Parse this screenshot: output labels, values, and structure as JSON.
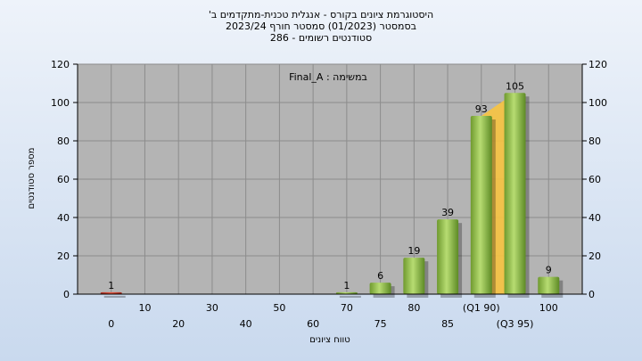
{
  "chart_data": {
    "type": "bar",
    "title_lines": [
      "היסטוגרמת ציונים בקורס - אנגלית טכנית-מתקדמים ב'",
      "בסמסטר (01/2023) סמסטר חורף 2023/24",
      "סטודנטים רשומים - 286"
    ],
    "annotation": "במשימה : Final_A",
    "xlabel": "טווח ציונים",
    "ylabel": "מספר סטודנטים",
    "ylim": [
      0,
      120
    ],
    "yticks": [
      0,
      20,
      40,
      60,
      80,
      100,
      120
    ],
    "grid": true,
    "categories": [
      "0",
      "10",
      "20",
      "30",
      "40",
      "50",
      "60",
      "70",
      "75",
      "80",
      "85",
      "90",
      "95",
      "100"
    ],
    "category_labels": [
      "0",
      "10",
      "20",
      "30",
      "40",
      "50",
      "60",
      "70",
      "75",
      "80",
      "85",
      "(Q1 90)",
      "(Q3 95)",
      "100"
    ],
    "values": [
      1,
      0,
      0,
      0,
      0,
      0,
      0,
      1,
      6,
      19,
      39,
      93,
      105,
      9
    ],
    "data_labels": [
      "1",
      "",
      "",
      "",
      "",
      "",
      "",
      "1",
      "6",
      "19",
      "39",
      "93",
      "105",
      "9"
    ],
    "quartile_band": [
      "90",
      "95"
    ],
    "colors": {
      "plot_bg": "#b4b4b4",
      "bar_main": "#8fbe4a",
      "bar_low": "#d23a2a",
      "quartile_band": "#f7c340"
    }
  }
}
